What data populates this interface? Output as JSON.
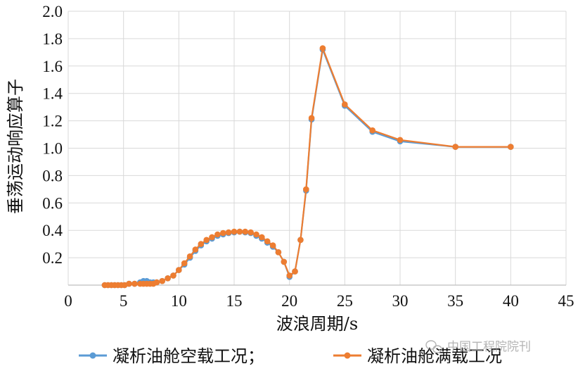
{
  "chart_data": {
    "type": "line",
    "xlabel": "波浪周期/s",
    "ylabel": "垂荡运动响应算子",
    "xlim": [
      0,
      45
    ],
    "ylim": [
      0,
      2.0
    ],
    "xticks": [
      "0",
      "5",
      "10",
      "15",
      "20",
      "25",
      "30",
      "35",
      "40",
      "45"
    ],
    "yticks": [
      "0.2",
      "0.4",
      "0.6",
      "0.8",
      "1.0",
      "1.2",
      "1.4",
      "1.6",
      "1.8",
      "2.0"
    ],
    "grid": true,
    "legend_position": "bottom",
    "series": [
      {
        "name": "凝析油舱空载工况；",
        "color": "#5b9bd5",
        "x": [
          3.3,
          3.6,
          3.9,
          4.2,
          4.5,
          4.8,
          5.1,
          5.5,
          6.0,
          6.5,
          6.8,
          7.1,
          7.4,
          7.7,
          8.0,
          8.5,
          9.0,
          9.5,
          10.0,
          10.5,
          11.0,
          11.5,
          12.0,
          12.5,
          13.0,
          13.5,
          14.0,
          14.5,
          15.0,
          15.5,
          16.0,
          16.5,
          17.0,
          17.5,
          18.0,
          18.5,
          19.0,
          19.5,
          20.0,
          20.5,
          21.0,
          21.5,
          22.0,
          23.0,
          25.0,
          27.5,
          30.0,
          35.0,
          40.0
        ],
        "y": [
          0.0,
          0.0,
          0.0,
          0.0,
          0.0,
          0.0,
          0.0,
          0.01,
          0.01,
          0.02,
          0.03,
          0.03,
          0.02,
          0.02,
          0.02,
          0.03,
          0.05,
          0.07,
          0.11,
          0.15,
          0.2,
          0.25,
          0.29,
          0.32,
          0.34,
          0.36,
          0.37,
          0.38,
          0.385,
          0.39,
          0.385,
          0.38,
          0.36,
          0.34,
          0.31,
          0.28,
          0.24,
          0.17,
          0.06,
          0.1,
          0.33,
          0.69,
          1.21,
          1.72,
          1.31,
          1.12,
          1.05,
          1.01,
          1.01
        ]
      },
      {
        "name": "凝析油舱满载工况",
        "color": "#ed7d31",
        "x": [
          3.3,
          3.6,
          3.9,
          4.2,
          4.5,
          4.8,
          5.1,
          5.5,
          6.0,
          6.5,
          6.8,
          7.1,
          7.4,
          7.7,
          8.0,
          8.5,
          9.0,
          9.5,
          10.0,
          10.5,
          11.0,
          11.5,
          12.0,
          12.5,
          13.0,
          13.5,
          14.0,
          14.5,
          15.0,
          15.5,
          16.0,
          16.5,
          17.0,
          17.5,
          18.0,
          18.5,
          19.0,
          19.5,
          20.0,
          20.5,
          21.0,
          21.5,
          22.0,
          23.0,
          25.0,
          27.5,
          30.0,
          35.0,
          40.0
        ],
        "y": [
          0.0,
          0.0,
          0.0,
          0.0,
          0.0,
          0.0,
          0.0,
          0.01,
          0.01,
          0.01,
          0.01,
          0.01,
          0.01,
          0.01,
          0.02,
          0.03,
          0.05,
          0.07,
          0.11,
          0.16,
          0.21,
          0.26,
          0.3,
          0.33,
          0.35,
          0.37,
          0.38,
          0.385,
          0.39,
          0.39,
          0.39,
          0.385,
          0.37,
          0.35,
          0.32,
          0.29,
          0.24,
          0.17,
          0.07,
          0.1,
          0.33,
          0.7,
          1.22,
          1.73,
          1.32,
          1.13,
          1.06,
          1.01,
          1.01
        ]
      }
    ]
  },
  "watermark": {
    "icon": "wechat-icon",
    "text": "中国工程院院刊"
  }
}
